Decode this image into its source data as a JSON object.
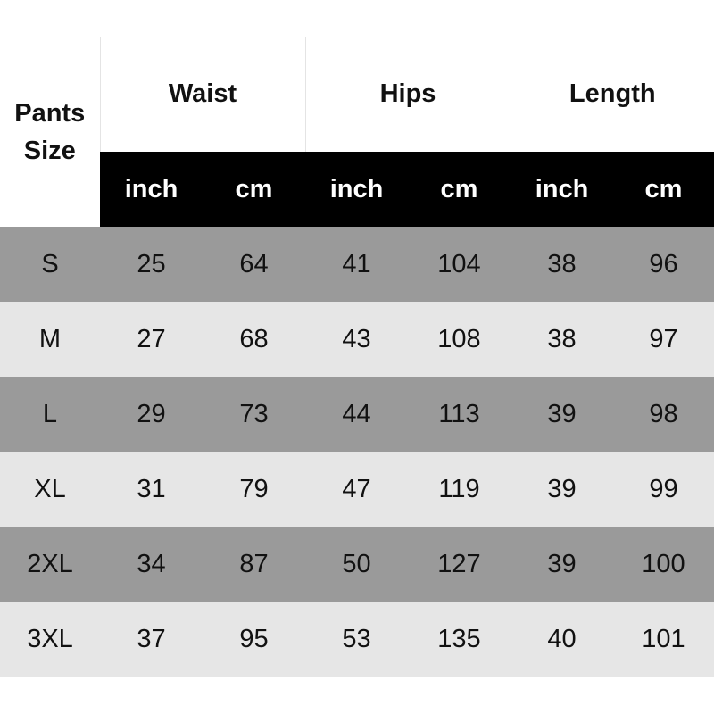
{
  "header": {
    "size_label_line1": "Pants",
    "size_label_line2": "Size",
    "groups": [
      "Waist",
      "Hips",
      "Length"
    ],
    "units": [
      "inch",
      "cm",
      "inch",
      "cm",
      "inch",
      "cm"
    ]
  },
  "rows": [
    {
      "size": "S",
      "values": [
        "25",
        "64",
        "41",
        "104",
        "38",
        "96"
      ]
    },
    {
      "size": "M",
      "values": [
        "27",
        "68",
        "43",
        "108",
        "38",
        "97"
      ]
    },
    {
      "size": "L",
      "values": [
        "29",
        "73",
        "44",
        "113",
        "39",
        "98"
      ]
    },
    {
      "size": "XL",
      "values": [
        "31",
        "79",
        "47",
        "119",
        "39",
        "99"
      ]
    },
    {
      "size": "2XL",
      "values": [
        "34",
        "87",
        "50",
        "127",
        "39",
        "100"
      ]
    },
    {
      "size": "3XL",
      "values": [
        "37",
        "95",
        "53",
        "135",
        "40",
        "101"
      ]
    }
  ],
  "colors": {
    "dark_row": "#9a9a9a",
    "light_row": "#e6e6e6",
    "unit_header": "#000000"
  }
}
